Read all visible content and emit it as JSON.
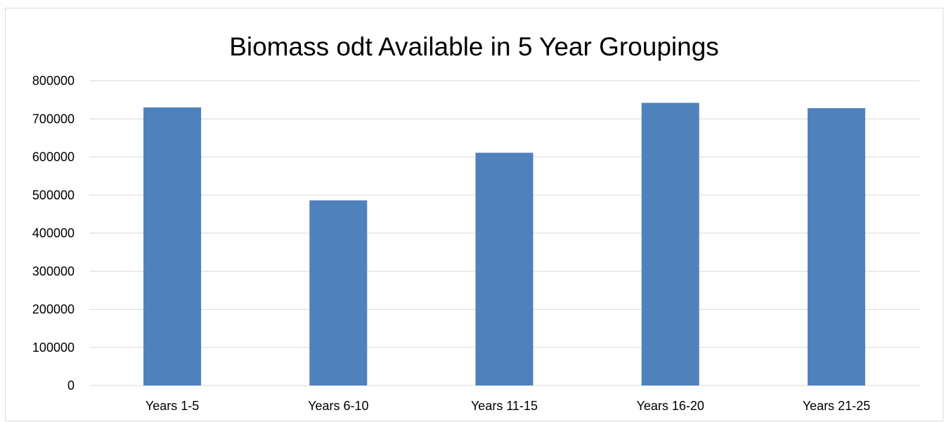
{
  "chart_data": {
    "type": "bar",
    "title": "Biomass odt Available in 5 Year Groupings",
    "xlabel": "",
    "ylabel": "",
    "categories": [
      "Years 1-5",
      "Years 6-10",
      "Years 11-15",
      "Years 16-20",
      "Years 21-25"
    ],
    "values": [
      730000,
      486000,
      611000,
      742000,
      728000
    ],
    "ylim": [
      0,
      800000
    ],
    "yticks": [
      "0",
      "100000",
      "200000",
      "300000",
      "400000",
      "500000",
      "600000",
      "700000",
      "800000"
    ],
    "grid": true,
    "legend": "none",
    "bar_color": "#4f81bd",
    "grid_color": "#d9d9d9"
  }
}
